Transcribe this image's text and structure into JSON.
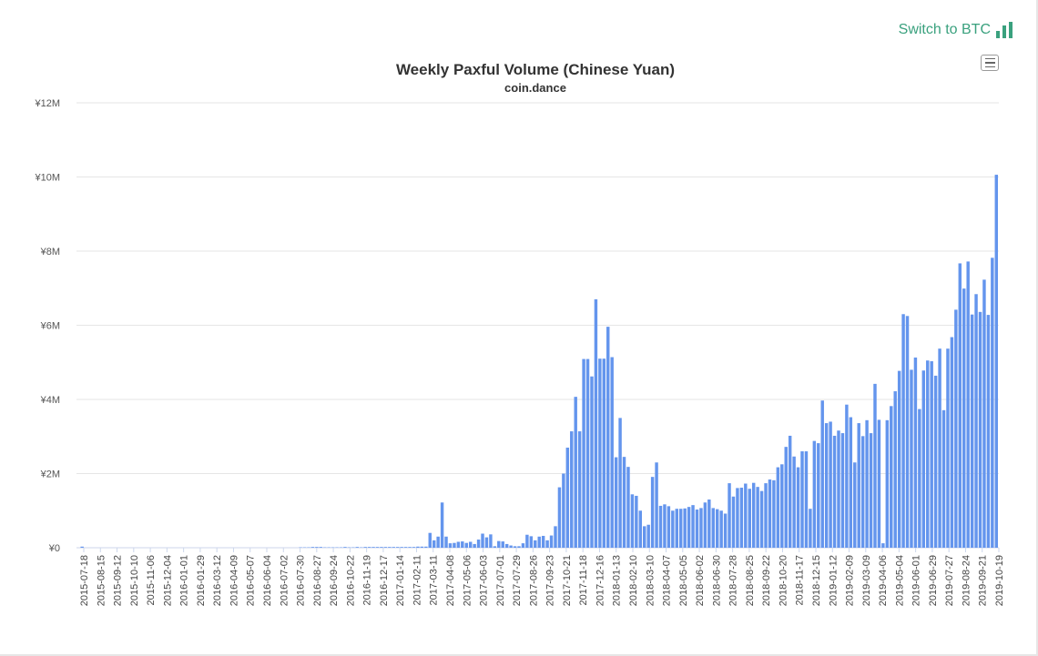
{
  "switch": {
    "label": "Switch to BTC"
  },
  "chart_data": {
    "type": "bar",
    "title": "Weekly Paxful Volume (Chinese Yuan)",
    "subtitle": "coin.dance",
    "xlabel": "",
    "ylabel": "",
    "ylim": [
      0,
      12000000
    ],
    "yticks": [
      {
        "value": 0,
        "label": "¥0"
      },
      {
        "value": 2000000,
        "label": "¥2M"
      },
      {
        "value": 4000000,
        "label": "¥4M"
      },
      {
        "value": 6000000,
        "label": "¥6M"
      },
      {
        "value": 8000000,
        "label": "¥8M"
      },
      {
        "value": 10000000,
        "label": "¥10M"
      },
      {
        "value": 12000000,
        "label": "¥12M"
      }
    ],
    "grid": true,
    "bar_color": "#6495ED",
    "start_week": "2015-07-18",
    "x_tick_labels": [
      "2015-07-18",
      "2015-08-15",
      "2015-09-12",
      "2015-10-10",
      "2015-11-06",
      "2015-12-04",
      "2016-01-01",
      "2016-01-29",
      "2016-03-12",
      "2016-04-09",
      "2016-05-07",
      "2016-06-04",
      "2016-07-02",
      "2016-07-30",
      "2016-08-27",
      "2016-09-24",
      "2016-10-22",
      "2016-11-19",
      "2016-12-17",
      "2017-01-14",
      "2017-02-11",
      "2017-03-11",
      "2017-04-08",
      "2017-05-06",
      "2017-06-03",
      "2017-07-01",
      "2017-07-29",
      "2017-08-26",
      "2017-09-23",
      "2017-10-21",
      "2017-11-18",
      "2017-12-16",
      "2018-01-13",
      "2018-02-10",
      "2018-03-10",
      "2018-04-07",
      "2018-05-05",
      "2018-06-02",
      "2018-06-30",
      "2018-07-28",
      "2018-08-25",
      "2018-09-22",
      "2018-10-20",
      "2018-11-17",
      "2018-12-15",
      "2019-01-12",
      "2019-02-09",
      "2019-03-09",
      "2019-04-06",
      "2019-05-04",
      "2019-06-01",
      "2019-06-29",
      "2019-07-27",
      "2019-08-24",
      "2019-09-21",
      "2019-10-19"
    ],
    "values": [
      0,
      30000,
      0,
      0,
      0,
      0,
      0,
      0,
      0,
      0,
      0,
      0,
      0,
      0,
      0,
      0,
      0,
      0,
      0,
      0,
      0,
      0,
      0,
      0,
      0,
      0,
      0,
      0,
      0,
      0,
      0,
      0,
      0,
      0,
      0,
      0,
      0,
      0,
      0,
      0,
      0,
      0,
      0,
      0,
      0,
      0,
      0,
      0,
      0,
      0,
      0,
      0,
      0,
      0,
      0,
      10000,
      10000,
      10000,
      20000,
      20000,
      20000,
      10000,
      10000,
      10000,
      10000,
      10000,
      20000,
      10000,
      10000,
      20000,
      10000,
      20000,
      20000,
      20000,
      20000,
      20000,
      20000,
      20000,
      20000,
      20000,
      20000,
      20000,
      20000,
      20000,
      30000,
      30000,
      30000,
      400000,
      200000,
      300000,
      1220000,
      300000,
      120000,
      130000,
      160000,
      170000,
      130000,
      160000,
      100000,
      220000,
      380000,
      280000,
      360000,
      40000,
      180000,
      170000,
      100000,
      60000,
      40000,
      40000,
      120000,
      350000,
      310000,
      200000,
      300000,
      320000,
      200000,
      330000,
      580000,
      1630000,
      2000000,
      2700000,
      3140000,
      4070000,
      3140000,
      5090000,
      5090000,
      4620000,
      6700000,
      5100000,
      5100000,
      5960000,
      5140000,
      2440000,
      3500000,
      2450000,
      2180000,
      1440000,
      1400000,
      1000000,
      580000,
      620000,
      1910000,
      2300000,
      1130000,
      1170000,
      1120000,
      1000000,
      1050000,
      1050000,
      1060000,
      1100000,
      1150000,
      1030000,
      1070000,
      1220000,
      1300000,
      1070000,
      1040000,
      1000000,
      920000,
      1740000,
      1380000,
      1610000,
      1620000,
      1730000,
      1590000,
      1750000,
      1640000,
      1530000,
      1740000,
      1840000,
      1820000,
      2170000,
      2250000,
      2720000,
      3020000,
      2460000,
      2170000,
      2600000,
      2600000,
      1050000,
      2880000,
      2820000,
      3970000,
      3360000,
      3400000,
      3020000,
      3160000,
      3090000,
      3860000,
      3520000,
      2300000,
      3360000,
      3010000,
      3440000,
      3090000,
      4420000,
      3450000,
      120000,
      3440000,
      3820000,
      4220000,
      4770000,
      6300000,
      6250000,
      4800000,
      5130000,
      3740000,
      4780000,
      5050000,
      5030000,
      4640000,
      5370000,
      3710000,
      5370000,
      5680000,
      6420000,
      7670000,
      6990000,
      7720000,
      6290000,
      6840000,
      6360000,
      7230000,
      6280000,
      7820000,
      10060000
    ]
  }
}
